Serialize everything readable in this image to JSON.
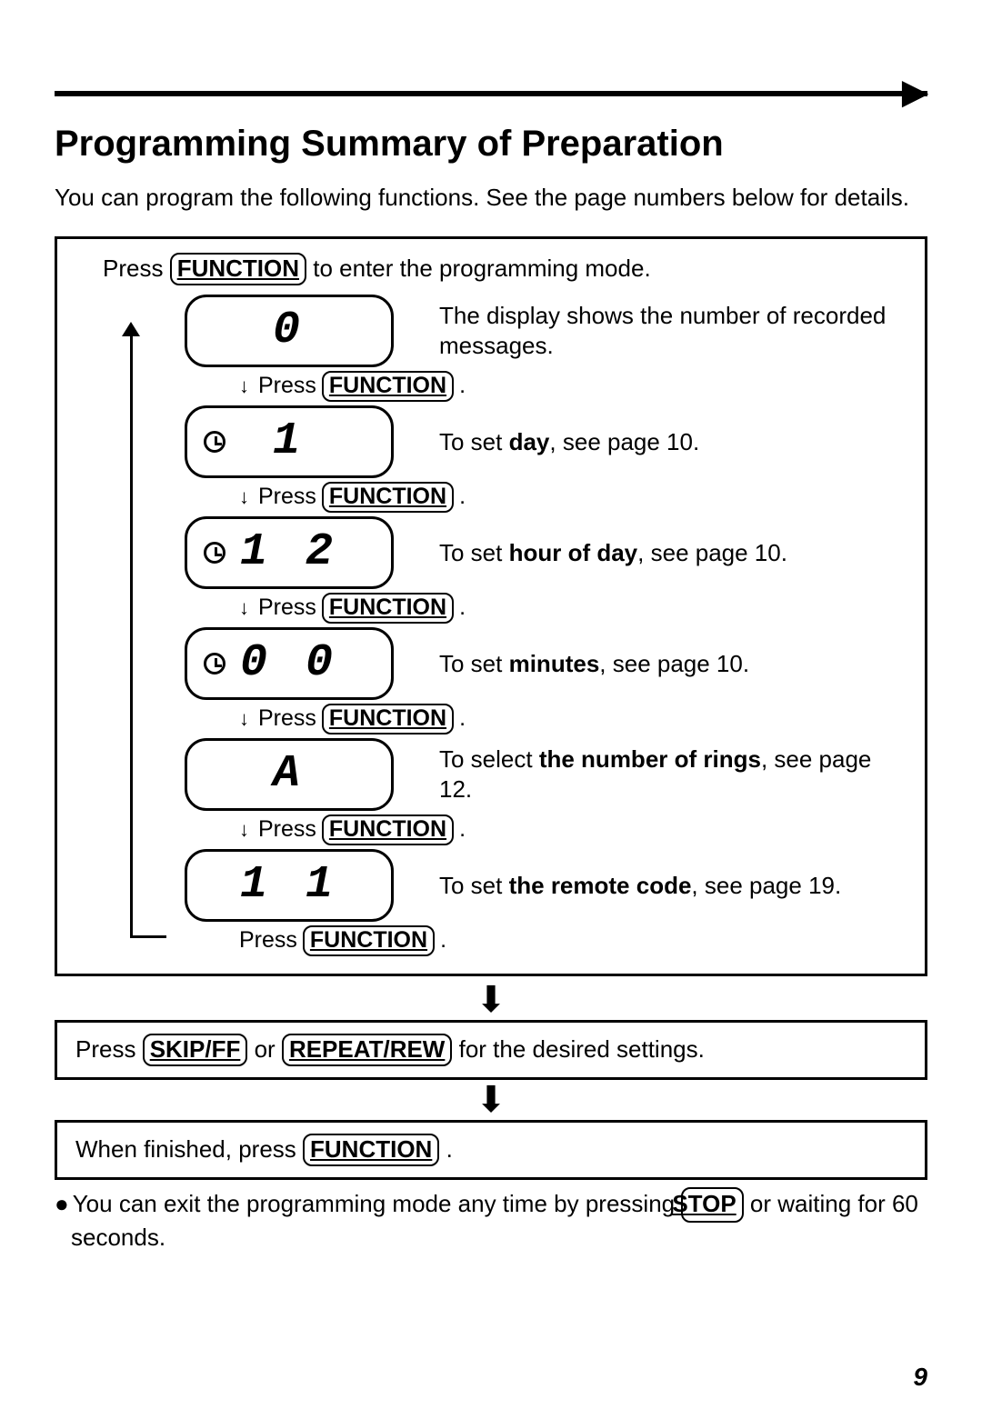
{
  "page": {
    "title": "Programming Summary of Preparation",
    "intro": "You can program the following functions. See the page numbers below for details.",
    "page_number": "9",
    "top_arrow_glyph": "▶"
  },
  "buttons": {
    "function": "FUNCTION",
    "skip_ff": "SKIP/FF",
    "repeat_rew": "REPEAT/REW",
    "stop": "STOP"
  },
  "main": {
    "enter_prefix": "Press ",
    "enter_suffix": " to enter the programming mode.",
    "press_prefix": "Press ",
    "press_suffix_period": "."
  },
  "steps": [
    {
      "display": "0",
      "show_clock": false,
      "desc_prefix": "The display shows the number of recorded messages.",
      "desc_bold": "",
      "desc_suffix": ""
    },
    {
      "display": "1",
      "show_clock": true,
      "desc_prefix": "To set ",
      "desc_bold": "day",
      "desc_suffix": ", see page 10."
    },
    {
      "display": "1 2",
      "show_clock": true,
      "desc_prefix": "To set ",
      "desc_bold": "hour of day",
      "desc_suffix": ", see page 10."
    },
    {
      "display": "0 0",
      "show_clock": true,
      "desc_prefix": "To set ",
      "desc_bold": "minutes",
      "desc_suffix": ", see page 10."
    },
    {
      "display": "A",
      "show_clock": false,
      "desc_prefix": "To select ",
      "desc_bold": "the number of rings",
      "desc_suffix": ", see page 12."
    },
    {
      "display": "1 1",
      "show_clock": false,
      "desc_prefix": "To set ",
      "desc_bold": "the remote code",
      "desc_suffix": ", see page 19."
    }
  ],
  "sub1": {
    "prefix": "Press ",
    "mid": " or ",
    "suffix": " for the desired settings."
  },
  "sub2": {
    "prefix": "When finished, press ",
    "suffix": "."
  },
  "note": {
    "prefix": "You can exit the programming mode any time by pressing ",
    "suffix": " or waiting for 60 seconds."
  },
  "colors": {
    "text": "#000000",
    "background": "#ffffff",
    "border": "#000000"
  },
  "arrow_glyph": "↓",
  "big_arrow_glyph": "⬇"
}
